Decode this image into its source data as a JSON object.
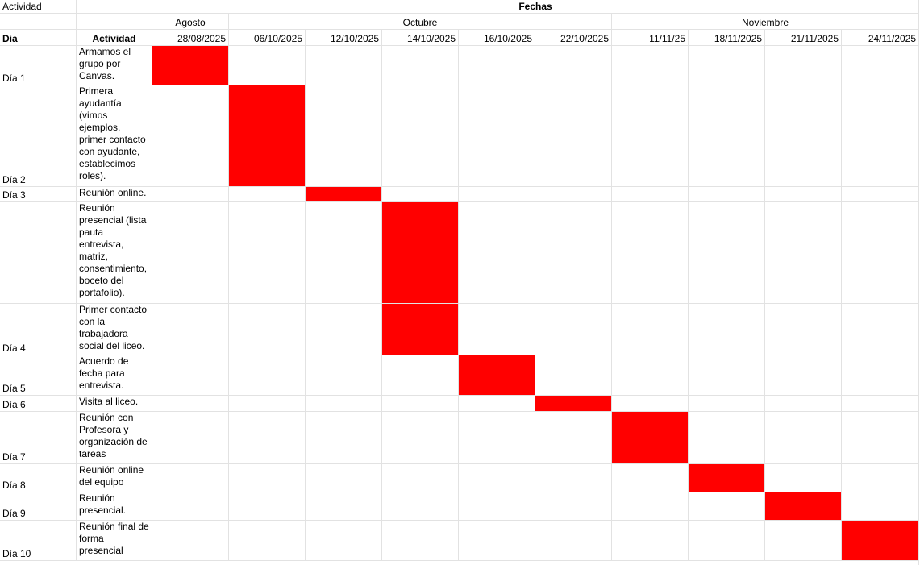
{
  "header": {
    "corner": "Actividad",
    "title": "Fechas"
  },
  "months": [
    "Agosto",
    "Octubre",
    "Noviembre"
  ],
  "columns": {
    "day": "Dia",
    "activity": "Actividad"
  },
  "dates": [
    "28/08/2025",
    "06/10/2025",
    "12/10/2025",
    "14/10/2025",
    "16/10/2025",
    "22/10/2025",
    "11/11/25",
    "18/11/2025",
    "21/11/2025",
    "24/11/2025"
  ],
  "rows": [
    {
      "day": "Día 1",
      "activity": "Armamos el grupo por Canvas."
    },
    {
      "day": "Día 2",
      "activity": "Primera ayudantía (vimos ejemplos, primer contacto con ayudante, establecimos roles)."
    },
    {
      "day": "Día 3",
      "activity": "Reunión online."
    },
    {
      "activity": "Reunión presencial (lista pauta entrevista, matriz, consentimiento, boceto del portafolio)."
    },
    {
      "day": "Día 4",
      "activity": "Primer contacto con la trabajadora social del liceo."
    },
    {
      "day": "Día 5",
      "activity": "Acuerdo de fecha para entrevista."
    },
    {
      "day": "Día 6",
      "activity": "Visita al liceo."
    },
    {
      "day": "Día 7",
      "activity": "Reunión con Profesora y organización de tareas"
    },
    {
      "day": "Día 8",
      "activity": "Reunión online del equipo"
    },
    {
      "day": "Día 9",
      "activity": "Reunión presencial."
    },
    {
      "day": "Día 10",
      "activity": "Reunión final de forma presencial"
    }
  ]
}
